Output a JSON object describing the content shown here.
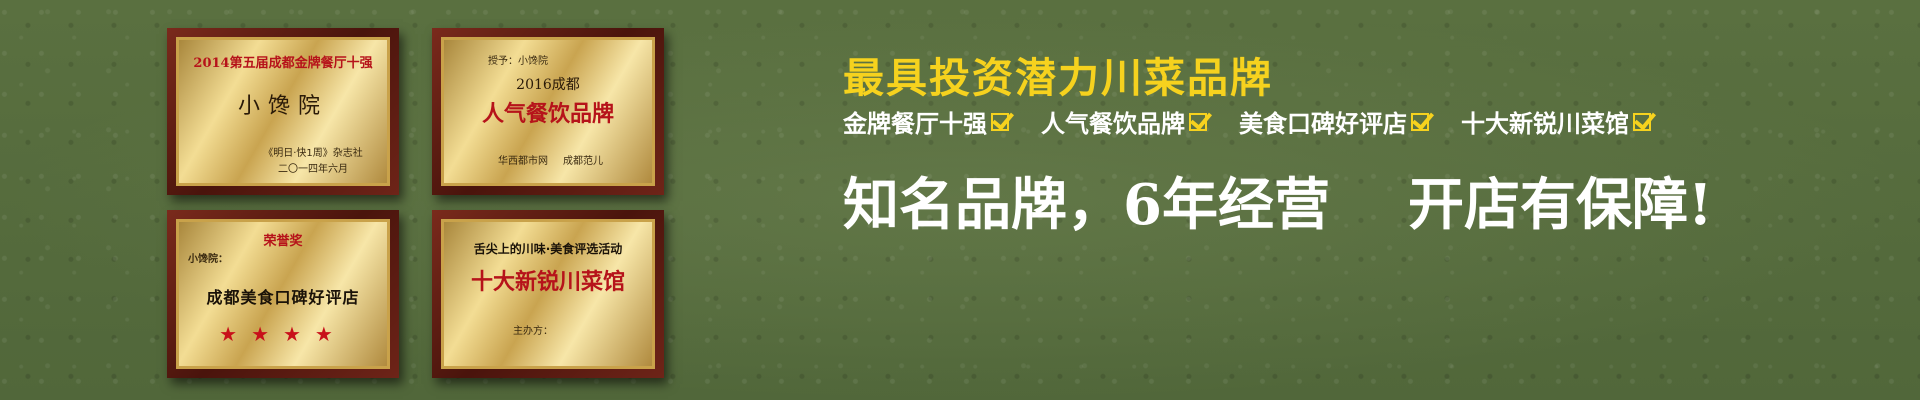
{
  "plaques": [
    {
      "top": "2014第五届成都金牌餐厅十强",
      "name": "小馋院",
      "footer1": "《明日·快1周》杂志社",
      "footer2": "二〇一四年六月"
    },
    {
      "recipient": "授予：小馋院",
      "year": "2016成都",
      "title": "人气餐饮品牌",
      "footer1": "华西都市网",
      "footer2": "成都范儿"
    },
    {
      "top": "荣誉奖",
      "recipient": "小馋院：",
      "title": "成都美食口碑好评店",
      "stars": "★★★★"
    },
    {
      "top": "舌尖上的川味·美食评选活动",
      "title": "十大新锐川菜馆",
      "footer": "主办方："
    }
  ],
  "headline": "最具投资潜力川菜品牌",
  "checks": [
    {
      "label": "金牌餐厅十强",
      "icon": "checkbox-icon"
    },
    {
      "label": "人气餐饮品牌",
      "icon": "checkbox-icon"
    },
    {
      "label": "美食口碑好评店",
      "icon": "checkbox-icon"
    },
    {
      "label": "十大新锐川菜馆",
      "icon": "checkbox-icon"
    }
  ],
  "slogan": {
    "part1": "知名品牌，6年经营",
    "part2": "开店有保障!"
  },
  "colors": {
    "background": "#556b3a",
    "accent_yellow": "#f6d21e",
    "plaque_red": "#b6131a",
    "frame": "#6e2418"
  }
}
